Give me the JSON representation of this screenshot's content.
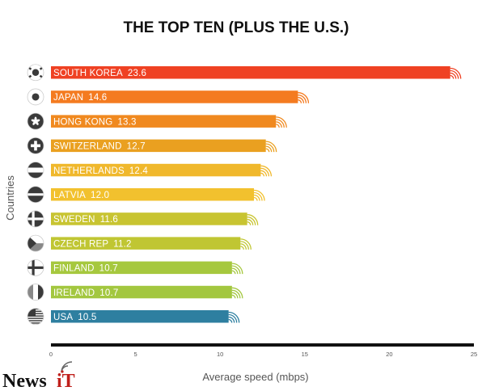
{
  "chart_data": {
    "type": "bar",
    "orientation": "horizontal",
    "title": "THE TOP TEN (PLUS THE U.S.)",
    "xlabel": "Average speed (mbps)",
    "ylabel": "Countries",
    "xlim": [
      0,
      25
    ],
    "xticks": [
      0,
      5,
      10,
      15,
      20,
      25
    ],
    "categories": [
      "SOUTH KOREA",
      "JAPAN",
      "HONG KONG",
      "SWITZERLAND",
      "NETHERLANDS",
      "LATVIA",
      "SWEDEN",
      "CZECH REP",
      "FINLAND",
      "IRELAND",
      "USA"
    ],
    "values": [
      23.6,
      14.6,
      13.3,
      12.7,
      12.4,
      12.0,
      11.6,
      11.2,
      10.7,
      10.7,
      10.5
    ],
    "value_labels": [
      "23.6",
      "14.6",
      "13.3",
      "12.7",
      "12.4",
      "12.0",
      "11.6",
      "11.2",
      "10.7",
      "10.7",
      "10.5"
    ],
    "bar_colors": [
      "#ef4123",
      "#f47b20",
      "#f0891f",
      "#eaa020",
      "#f0b82c",
      "#f2c12e",
      "#c8c431",
      "#c0c633",
      "#a6c83e",
      "#a3c73f",
      "#2e7fa0"
    ],
    "flags": [
      "south-korea-flag-icon",
      "japan-flag-icon",
      "hong-kong-flag-icon",
      "switzerland-flag-icon",
      "netherlands-flag-icon",
      "latvia-flag-icon",
      "sweden-flag-icon",
      "czech-republic-flag-icon",
      "finland-flag-icon",
      "ireland-flag-icon",
      "usa-flag-icon"
    ],
    "grid": false,
    "legend": "none"
  },
  "watermark": {
    "brand": "News",
    "suffix": "iT"
  }
}
